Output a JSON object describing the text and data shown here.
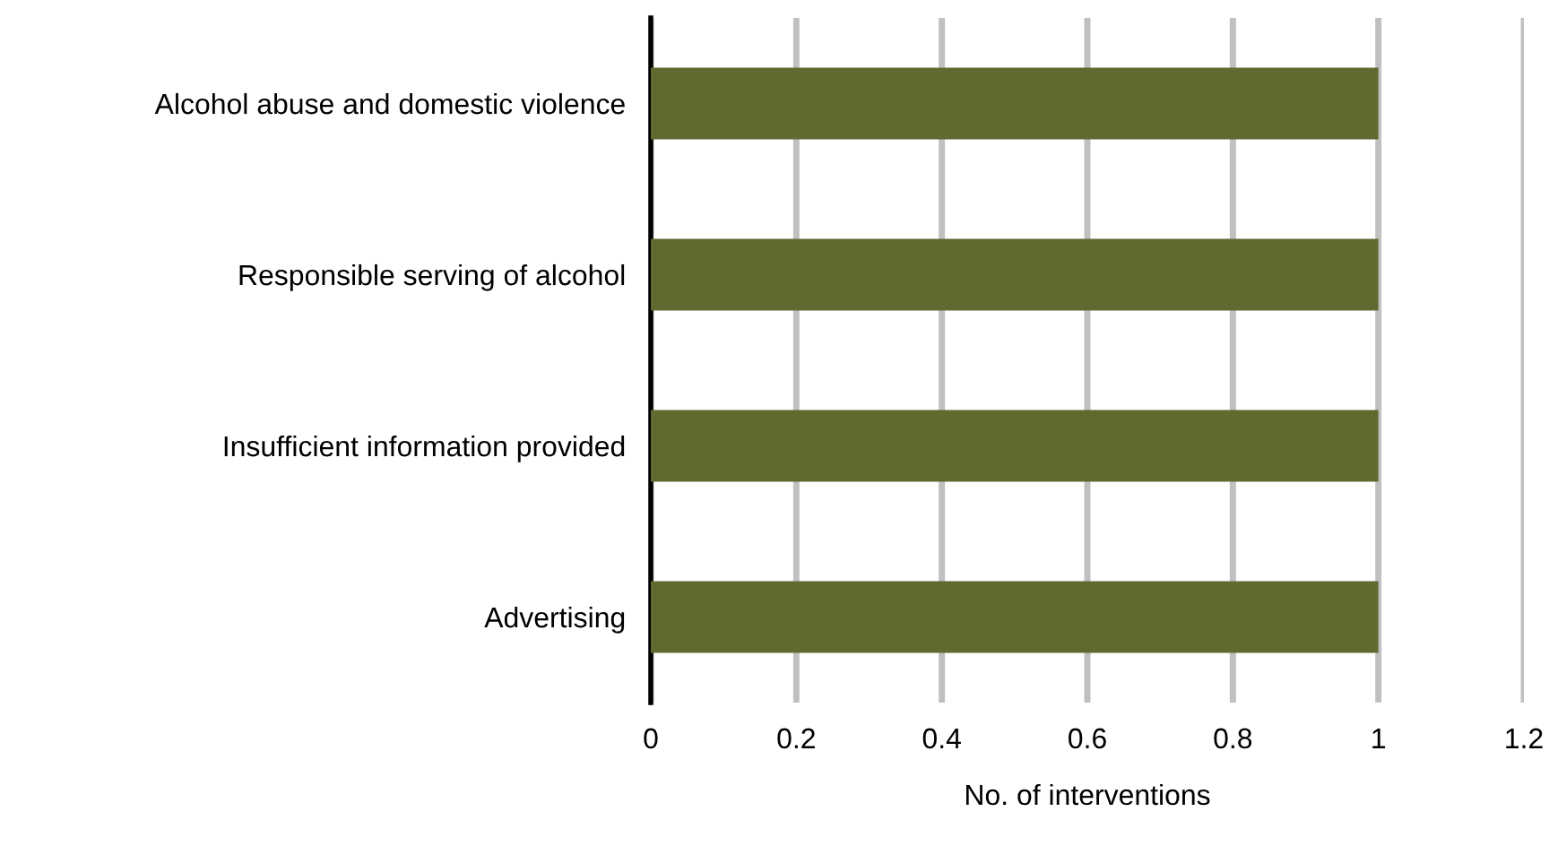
{
  "chart_data": {
    "type": "bar",
    "orientation": "horizontal",
    "xlabel": "No. of interventions",
    "categories": [
      "Alcohol abuse and domestic violence",
      "Responsible serving of alcohol",
      "Insufficient information provided",
      "Advertising"
    ],
    "values": [
      1,
      1,
      1,
      1
    ],
    "color": "#5f6a30",
    "xlim": [
      0,
      1.2
    ],
    "xticks": [
      0,
      0.2,
      0.4,
      0.6,
      0.8,
      1,
      1.2
    ],
    "grid": "x",
    "legend": false
  }
}
